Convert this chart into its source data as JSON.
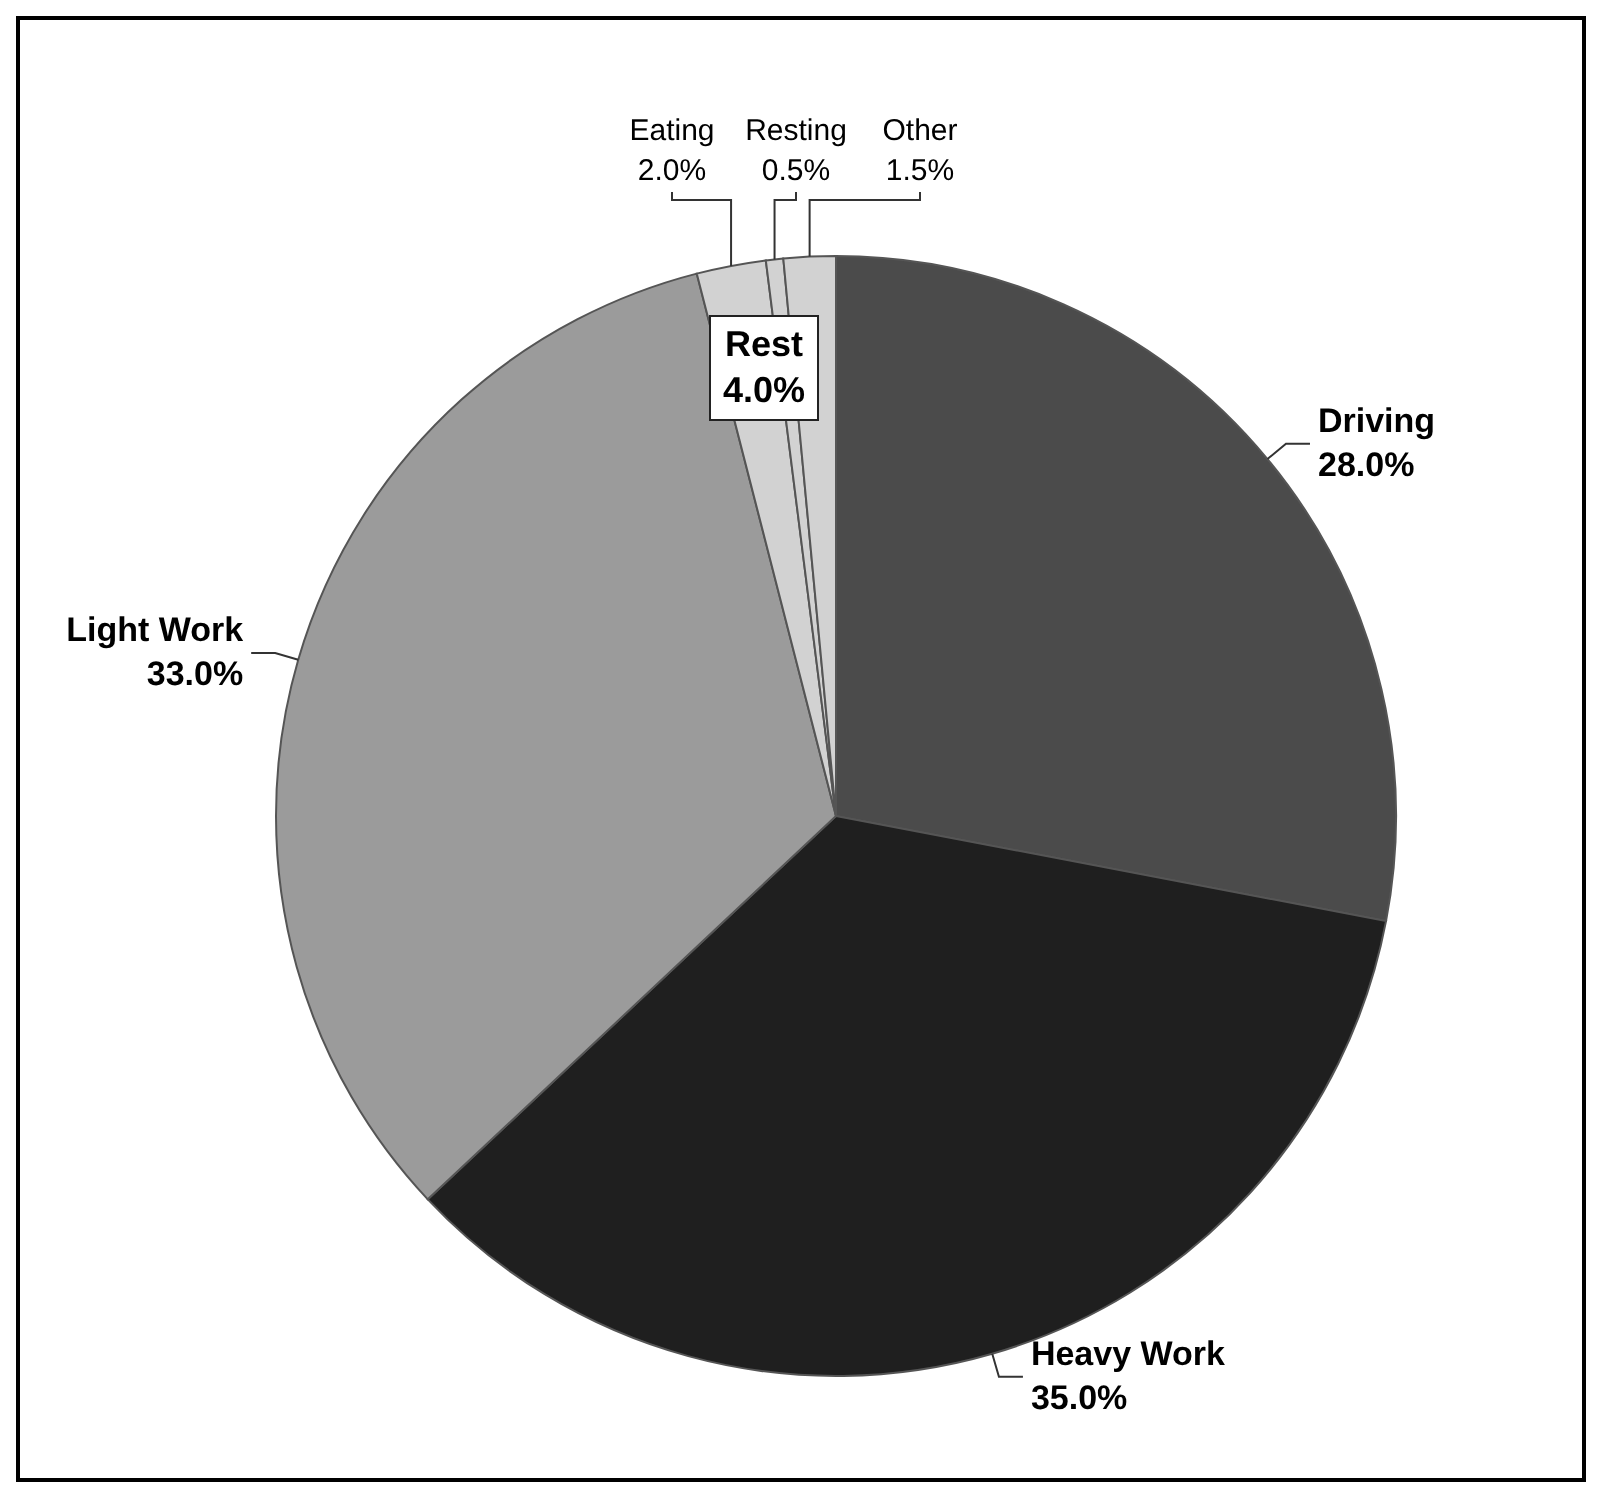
{
  "chart_data": {
    "type": "pie",
    "categories": [
      "Driving",
      "Heavy Work",
      "Light Work",
      "Eating",
      "Resting",
      "Other"
    ],
    "values": [
      28.0,
      35.0,
      33.0,
      2.0,
      0.5,
      1.5
    ],
    "value_labels": [
      "28.0%",
      "35.0%",
      "33.0%",
      "2.0%",
      "0.5%",
      "1.5%"
    ],
    "colors": [
      "#4b4b4b",
      "#1f1f1f",
      "#9b9b9b",
      "#d2d2d2",
      "#d2d2d2",
      "#d2d2d2"
    ],
    "annotations": [
      "Rest 4.0%"
    ]
  }
}
